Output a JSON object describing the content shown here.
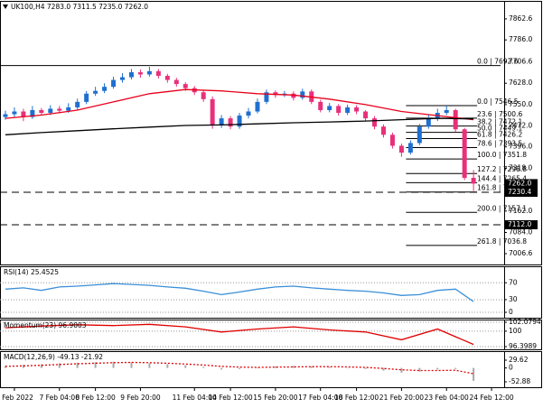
{
  "chart_data": [
    {
      "type": "candlestick",
      "title": "UK100,H4  7283.0 7311.5 7235.0 7262.0",
      "colors": {
        "up": "#1f6fd0",
        "down": "#e8307a"
      },
      "open": [
        7505,
        7515,
        7525,
        7505,
        7530,
        7520,
        7535,
        7528,
        7540,
        7560,
        7590,
        7600,
        7615,
        7640,
        7650,
        7668,
        7660,
        7672,
        7655,
        7640,
        7625,
        7610,
        7595,
        7570,
        7475,
        7500,
        7470,
        7510,
        7525,
        7560,
        7595,
        7585,
        7590,
        7575,
        7598,
        7560,
        7530,
        7545,
        7520,
        7540,
        7525,
        7500,
        7470,
        7440,
        7400,
        7375,
        7410,
        7470,
        7500,
        7520,
        7530,
        7460,
        7283
      ],
      "high": [
        7528,
        7540,
        7535,
        7545,
        7538,
        7548,
        7545,
        7555,
        7572,
        7600,
        7615,
        7628,
        7652,
        7665,
        7680,
        7678,
        7688,
        7680,
        7662,
        7648,
        7632,
        7618,
        7602,
        7580,
        7512,
        7508,
        7520,
        7538,
        7572,
        7605,
        7602,
        7600,
        7598,
        7608,
        7605,
        7568,
        7556,
        7552,
        7550,
        7548,
        7530,
        7508,
        7478,
        7448,
        7408,
        7420,
        7480,
        7515,
        7535,
        7546.5,
        7535,
        7465,
        7311.5
      ],
      "low": [
        7495,
        7505,
        7490,
        7498,
        7510,
        7512,
        7518,
        7520,
        7532,
        7552,
        7582,
        7592,
        7608,
        7630,
        7642,
        7648,
        7652,
        7645,
        7630,
        7615,
        7600,
        7585,
        7560,
        7462,
        7465,
        7460,
        7462,
        7500,
        7518,
        7552,
        7575,
        7578,
        7565,
        7568,
        7552,
        7522,
        7522,
        7510,
        7512,
        7515,
        7490,
        7460,
        7430,
        7390,
        7360,
        7368,
        7402,
        7462,
        7490,
        7512,
        7450,
        7275,
        7235
      ],
      "close": [
        7515,
        7525,
        7505,
        7530,
        7520,
        7535,
        7528,
        7540,
        7560,
        7590,
        7600,
        7615,
        7640,
        7650,
        7668,
        7660,
        7672,
        7655,
        7640,
        7625,
        7610,
        7595,
        7570,
        7475,
        7500,
        7470,
        7510,
        7525,
        7560,
        7595,
        7585,
        7590,
        7575,
        7598,
        7560,
        7530,
        7545,
        7520,
        7540,
        7525,
        7500,
        7470,
        7440,
        7400,
        7375,
        7410,
        7470,
        7500,
        7520,
        7530,
        7460,
        7283,
        7262
      ],
      "overlays": [
        {
          "color": "#e8001c",
          "x": [
            0,
            4,
            8,
            12,
            16,
            20,
            24,
            28,
            32,
            36,
            40,
            44,
            48,
            52
          ],
          "values": [
            7500,
            7512,
            7530,
            7560,
            7590,
            7605,
            7600,
            7590,
            7585,
            7570,
            7550,
            7525,
            7510,
            7495
          ]
        },
        {
          "color": "#000000",
          "x": [
            0,
            4,
            8,
            12,
            16,
            20,
            24,
            28,
            32,
            36,
            40,
            44,
            48,
            52
          ],
          "values": [
            7440,
            7448,
            7455,
            7462,
            7468,
            7474,
            7476,
            7480,
            7484,
            7487,
            7490,
            7495,
            7500,
            7498
          ]
        }
      ],
      "fib": [
        {
          "start": -0.6,
          "end": 55,
          "levels": [
            {
              "label": "0.0 | 7692.6",
              "value": 7692.6
            }
          ]
        },
        {
          "start": 44.5,
          "end": 52.4,
          "levels": [
            {
              "label": "0.0 | 7546.5",
              "value": 7546.5
            },
            {
              "label": "23.6 | 7500.6",
              "value": 7500.6
            },
            {
              "label": "38.2 | 7472.1",
              "value": 7472.1
            },
            {
              "label": "50.0 | 7449.1",
              "value": 7449.1
            },
            {
              "label": "61.8 | 7426.2",
              "value": 7426.2
            },
            {
              "label": "78.6 | 7393.5",
              "value": 7393.5
            },
            {
              "label": "100.0 | 7351.8",
              "value": 7351.8
            },
            {
              "label": "127.2 | 7298.8",
              "value": 7298.8
            },
            {
              "label": "144.4 | 7265.4",
              "value": 7265.4
            },
            {
              "label": "161.8 | 7231.5",
              "value": 7231.5
            },
            {
              "label": "200.0 | 7157.1",
              "value": 7157.1
            },
            {
              "label": "261.8 | 7036.8",
              "value": 7036.8
            }
          ]
        }
      ],
      "price_tags": [
        {
          "label": "7262.0",
          "value": 7262,
          "line": "none"
        },
        {
          "label": "7230.4",
          "value": 7230.4,
          "line": "dashed"
        },
        {
          "label": "7112.0",
          "value": 7112,
          "line": "dashed"
        }
      ],
      "ylim": [
        6967.2,
        7928.2
      ],
      "yticks": [
        7862.6,
        {
          "value": 7786,
          "label": "7786.0"
        },
        7706.6,
        {
          "value": 7628,
          "label": "7628.0"
        },
        {
          "value": 7550,
          "label": "7550.0"
        },
        {
          "value": 7472,
          "label": "7472.0"
        },
        {
          "value": 7396,
          "label": "7396.0"
        },
        {
          "value": 7318,
          "label": "7318.0"
        },
        {
          "value": 7162,
          "label": "7162.0"
        },
        {
          "value": 7084,
          "label": "7084.0"
        },
        7006.6
      ],
      "xlim": [
        -0.6,
        55.4
      ],
      "xticks": [
        {
          "value": 1,
          "label": "3 Feb 2022"
        },
        {
          "value": 6,
          "label": "7 Feb 04:00"
        },
        {
          "value": 10,
          "label": "8 Feb 12:00"
        },
        {
          "value": 15,
          "label": "9 Feb 20:00"
        },
        {
          "value": 21,
          "label": "11 Feb 04:00"
        },
        {
          "value": 25,
          "label": "14 Feb 12:00"
        },
        {
          "value": 30,
          "label": "15 Feb 20:00"
        },
        {
          "value": 35,
          "label": "17 Feb 04:00"
        },
        {
          "value": 39,
          "label": "18 Feb 12:00"
        },
        {
          "value": 44,
          "label": "21 Feb 20:00"
        },
        {
          "value": 49,
          "label": "23 Feb 04:00"
        },
        {
          "value": 54,
          "label": "24 Feb 12:00"
        }
      ]
    },
    {
      "type": "line",
      "title": "RSI(14) 25.4525",
      "ylim": [
        -12.8,
        109
      ],
      "yticks": [
        70,
        30,
        0
      ],
      "grid": true,
      "series": [
        {
          "color": "#3a8fd8",
          "x": [
            0,
            2,
            4,
            6,
            8,
            10,
            12,
            14,
            16,
            18,
            20,
            22,
            24,
            26,
            28,
            30,
            32,
            34,
            36,
            38,
            40,
            42,
            44,
            46,
            48,
            50,
            52
          ],
          "values": [
            55,
            58,
            52,
            60,
            62,
            65,
            68,
            66,
            64,
            60,
            57,
            50,
            42,
            48,
            55,
            60,
            62,
            58,
            55,
            52,
            50,
            46,
            40,
            42,
            52,
            55,
            25.4525
          ]
        }
      ]
    },
    {
      "type": "line",
      "title": "Momentum(23) 96.9003",
      "ylim": [
        95.77,
        102.71
      ],
      "yticks": [
        102.0794,
        100,
        96.3989
      ],
      "grid": true,
      "series": [
        {
          "color": "#e00000",
          "x": [
            0,
            4,
            8,
            12,
            16,
            20,
            24,
            28,
            32,
            36,
            40,
            44,
            48,
            52
          ],
          "values": [
            100.8,
            101.2,
            101.5,
            101.3,
            101.6,
            101.0,
            99.8,
            100.5,
            101.0,
            100.3,
            99.8,
            98.0,
            100.5,
            96.9003
          ]
        }
      ]
    },
    {
      "type": "combo",
      "title": "MACD(12,26,9) -49.13 -21.92",
      "ylim": [
        -73.5,
        64
      ],
      "yticks": [
        29.62,
        0,
        -52.88
      ],
      "grid": false,
      "series": [
        {
          "kind": "bar",
          "color": "#a8a8a8",
          "x": [
            0,
            2,
            4,
            6,
            8,
            10,
            12,
            14,
            16,
            18,
            20,
            22,
            24,
            26,
            28,
            30,
            32,
            34,
            36,
            38,
            40,
            42,
            44,
            46,
            48,
            50,
            52
          ],
          "values": [
            8,
            12,
            14,
            18,
            20,
            22,
            24,
            22,
            18,
            14,
            10,
            4,
            -6,
            -4,
            2,
            6,
            8,
            6,
            4,
            0,
            -4,
            -10,
            -18,
            -14,
            -6,
            -4,
            -49.13
          ]
        },
        {
          "kind": "line",
          "style": "dotted",
          "color": "#e00000",
          "x": [
            0,
            2,
            4,
            6,
            8,
            10,
            12,
            14,
            16,
            18,
            20,
            22,
            24,
            26,
            28,
            30,
            32,
            34,
            36,
            38,
            40,
            42,
            44,
            46,
            48,
            50,
            52
          ],
          "values": [
            6,
            8,
            10,
            13,
            16,
            18,
            20,
            21,
            20,
            18,
            15,
            11,
            6,
            3,
            2,
            3,
            4,
            5,
            5,
            4,
            2,
            -2,
            -7,
            -10,
            -10,
            -9,
            -21.92
          ]
        }
      ]
    }
  ]
}
